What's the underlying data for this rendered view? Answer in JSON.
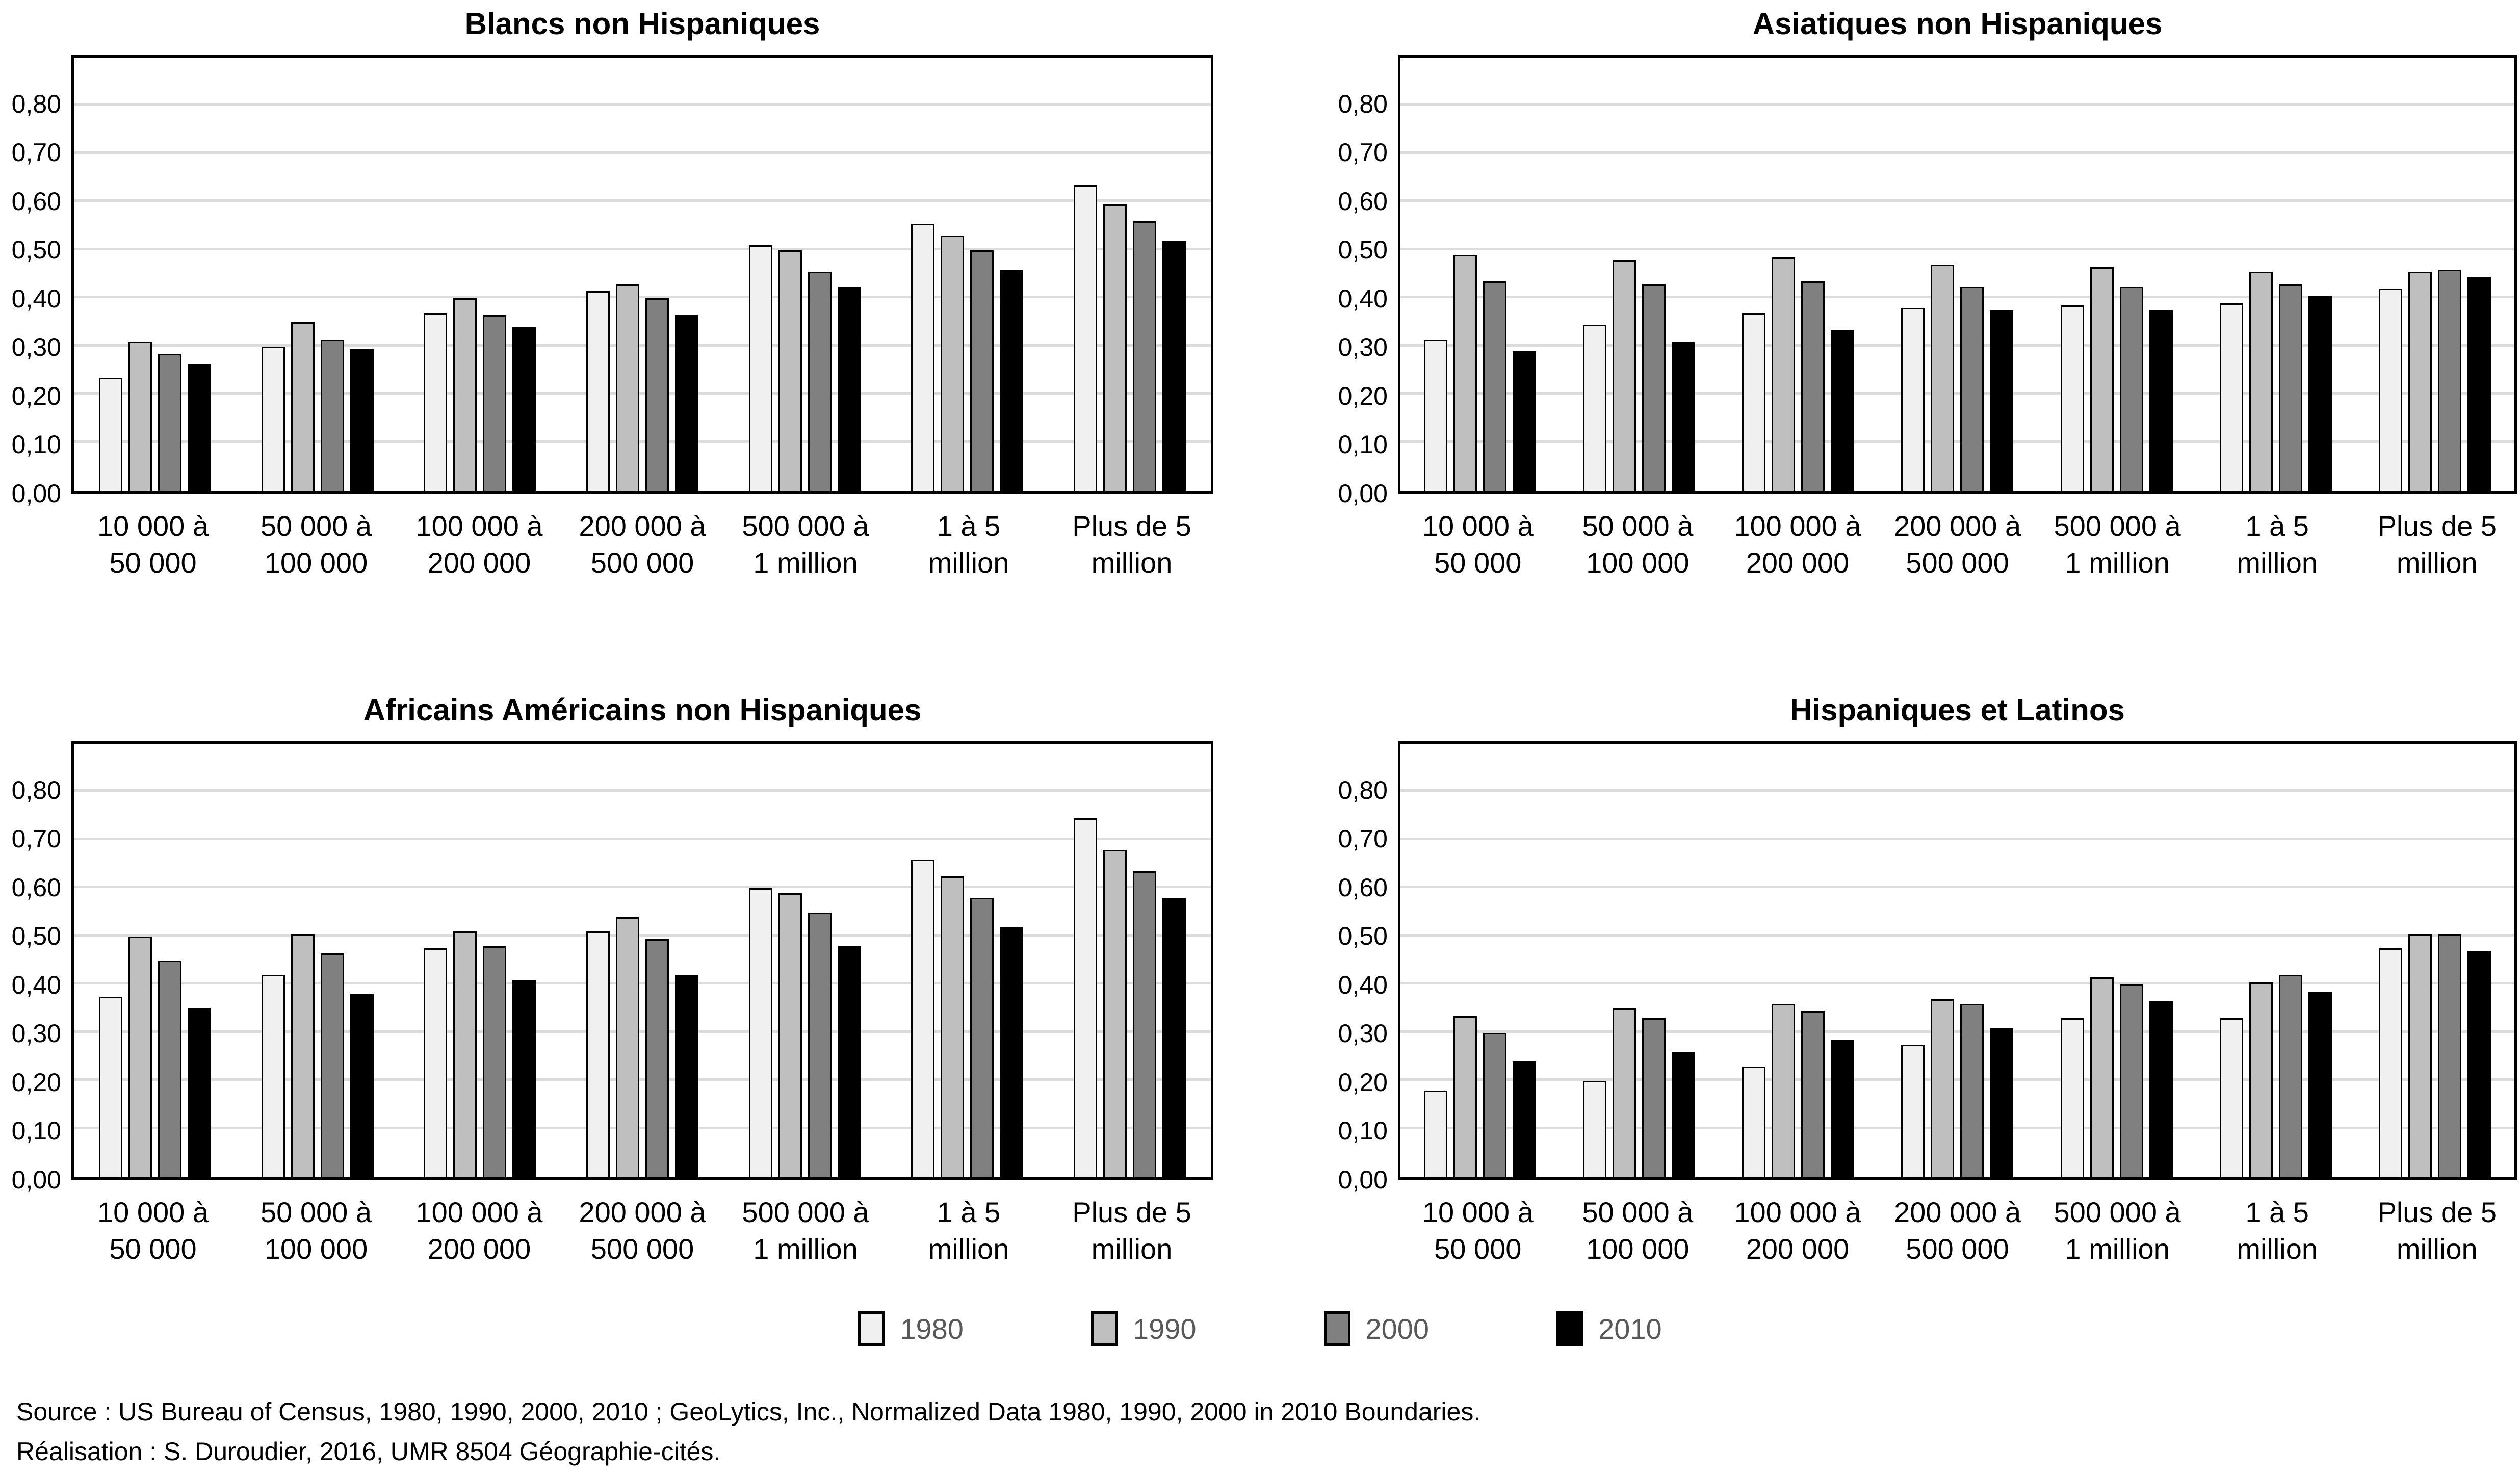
{
  "y_axis": {
    "ticks": [
      "0,00",
      "0,10",
      "0,20",
      "0,30",
      "0,40",
      "0,50",
      "0,60",
      "0,70",
      "0,80"
    ],
    "tick_values": [
      0.0,
      0.1,
      0.2,
      0.3,
      0.4,
      0.5,
      0.6,
      0.7,
      0.8
    ],
    "max_plotted": 0.9
  },
  "categories_lines": [
    [
      "10 000 à",
      "50 000"
    ],
    [
      "50 000 à",
      "100 000"
    ],
    [
      "100 000 à",
      "200 000"
    ],
    [
      "200 000 à",
      "500 000"
    ],
    [
      "500 000 à",
      "1 million"
    ],
    [
      "1 à 5",
      "million"
    ],
    [
      "Plus de 5",
      "million"
    ]
  ],
  "legend": [
    {
      "label": "1980",
      "color": "#F0F0F0"
    },
    {
      "label": "1990",
      "color": "#BFBFBF"
    },
    {
      "label": "2000",
      "color": "#808080"
    },
    {
      "label": "2010",
      "color": "#000000"
    }
  ],
  "colors": {
    "grid": "#DCDCDC",
    "bar_border": "#000000",
    "legend_text": "#595959"
  },
  "source": {
    "line1": "Source : US Bureau of Census, 1980, 1990, 2000, 2010 ; GeoLytics, Inc., Normalized Data 1980, 1990, 2000 in 2010 Boundaries.",
    "line2": "Réalisation : S. Duroudier, 2016, UMR 8504 Géographie-cités."
  },
  "chart_data": [
    {
      "type": "bar",
      "title": "Blancs non Hispaniques",
      "categories": [
        "10 000 à 50 000",
        "50 000 à 100 000",
        "100 000 à 200 000",
        "200 000 à 500 000",
        "500 000 à 1 million",
        "1 à 5 million",
        "Plus de 5 million"
      ],
      "ylim": [
        0,
        0.9
      ],
      "grid": true,
      "series": [
        {
          "name": "1980",
          "color": "#F0F0F0",
          "values": [
            0.235,
            0.3,
            0.37,
            0.415,
            0.51,
            0.555,
            0.635
          ]
        },
        {
          "name": "1990",
          "color": "#BFBFBF",
          "values": [
            0.31,
            0.35,
            0.4,
            0.43,
            0.5,
            0.53,
            0.595
          ]
        },
        {
          "name": "2000",
          "color": "#808080",
          "values": [
            0.285,
            0.315,
            0.365,
            0.4,
            0.455,
            0.5,
            0.56
          ]
        },
        {
          "name": "2010",
          "color": "#000000",
          "values": [
            0.265,
            0.295,
            0.34,
            0.365,
            0.425,
            0.46,
            0.52
          ]
        }
      ]
    },
    {
      "type": "bar",
      "title": "Asiatiques non Hispaniques",
      "categories": [
        "10 000 à 50 000",
        "50 000 à 100 000",
        "100 000 à 200 000",
        "200 000 à 500 000",
        "500 000 à 1 million",
        "1 à 5 million",
        "Plus de 5 million"
      ],
      "ylim": [
        0,
        0.9
      ],
      "grid": true,
      "series": [
        {
          "name": "1980",
          "color": "#F0F0F0",
          "values": [
            0.315,
            0.345,
            0.37,
            0.38,
            0.385,
            0.39,
            0.42
          ]
        },
        {
          "name": "1990",
          "color": "#BFBFBF",
          "values": [
            0.49,
            0.48,
            0.485,
            0.47,
            0.465,
            0.455,
            0.455
          ]
        },
        {
          "name": "2000",
          "color": "#808080",
          "values": [
            0.435,
            0.43,
            0.435,
            0.425,
            0.425,
            0.43,
            0.46
          ]
        },
        {
          "name": "2010",
          "color": "#000000",
          "values": [
            0.29,
            0.31,
            0.335,
            0.375,
            0.375,
            0.405,
            0.445
          ]
        }
      ]
    },
    {
      "type": "bar",
      "title": "Africains Américains non Hispaniques",
      "categories": [
        "10 000 à 50 000",
        "50 000 à 100 000",
        "100 000 à 200 000",
        "200 000 à 500 000",
        "500 000 à 1 million",
        "1 à 5 million",
        "Plus de 5 million"
      ],
      "ylim": [
        0,
        0.9
      ],
      "grid": true,
      "series": [
        {
          "name": "1980",
          "color": "#F0F0F0",
          "values": [
            0.375,
            0.42,
            0.475,
            0.51,
            0.6,
            0.66,
            0.745
          ]
        },
        {
          "name": "1990",
          "color": "#BFBFBF",
          "values": [
            0.5,
            0.505,
            0.51,
            0.54,
            0.59,
            0.625,
            0.68
          ]
        },
        {
          "name": "2000",
          "color": "#808080",
          "values": [
            0.45,
            0.465,
            0.48,
            0.495,
            0.55,
            0.58,
            0.635
          ]
        },
        {
          "name": "2010",
          "color": "#000000",
          "values": [
            0.35,
            0.38,
            0.41,
            0.42,
            0.48,
            0.52,
            0.58
          ]
        }
      ]
    },
    {
      "type": "bar",
      "title": "Hispaniques et Latinos",
      "categories": [
        "10 000 à 50 000",
        "50 000 à 100 000",
        "100 000 à 200 000",
        "200 000 à 500 000",
        "500 000 à 1 million",
        "1 à 5 million",
        "Plus de 5 million"
      ],
      "ylim": [
        0,
        0.9
      ],
      "grid": true,
      "series": [
        {
          "name": "1980",
          "color": "#F0F0F0",
          "values": [
            0.18,
            0.2,
            0.23,
            0.275,
            0.33,
            0.33,
            0.475
          ]
        },
        {
          "name": "1990",
          "color": "#BFBFBF",
          "values": [
            0.335,
            0.35,
            0.36,
            0.37,
            0.415,
            0.405,
            0.505
          ]
        },
        {
          "name": "2000",
          "color": "#808080",
          "values": [
            0.3,
            0.33,
            0.345,
            0.36,
            0.4,
            0.42,
            0.505
          ]
        },
        {
          "name": "2010",
          "color": "#000000",
          "values": [
            0.24,
            0.26,
            0.285,
            0.31,
            0.365,
            0.385,
            0.47
          ]
        }
      ]
    }
  ]
}
